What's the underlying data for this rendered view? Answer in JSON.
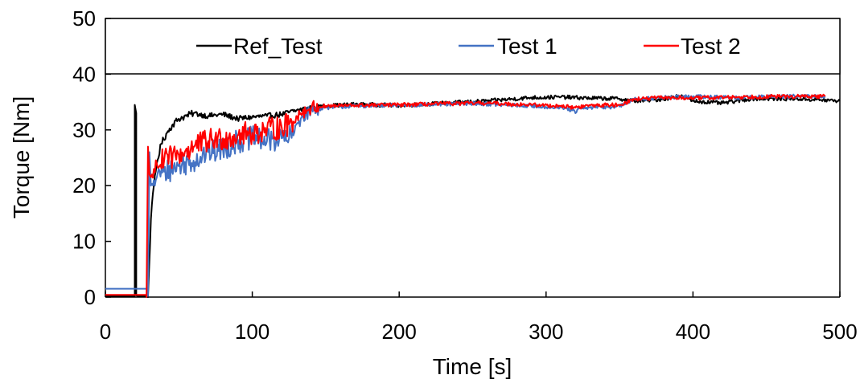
{
  "chart_data": {
    "type": "line",
    "title": "",
    "xlabel": "Time [s]",
    "ylabel": "Torque [Nm]",
    "xlim": [
      0,
      500
    ],
    "ylim": [
      0,
      50
    ],
    "xticks": [
      "0",
      "100",
      "200",
      "300",
      "400",
      "500"
    ],
    "yticks": [
      "0",
      "10",
      "20",
      "30",
      "40",
      "50"
    ],
    "grid": false,
    "legend_position": "top",
    "series": [
      {
        "name": "Ref_Test",
        "color": "#000000",
        "x": [
          0,
          19,
          20,
          20,
          21,
          21,
          22,
          28,
          29,
          31,
          33,
          35,
          38,
          42,
          46,
          50,
          55,
          60,
          70,
          80,
          90,
          100,
          110,
          120,
          130,
          140,
          150,
          170,
          200,
          230,
          260,
          290,
          310,
          330,
          350,
          360,
          380,
          390,
          400,
          420,
          440,
          470,
          500
        ],
        "y": [
          0.2,
          0.2,
          0.2,
          34.5,
          33,
          0.3,
          0.2,
          0.2,
          0,
          14,
          20,
          24,
          27.5,
          29.5,
          31,
          32,
          32.5,
          33,
          32.5,
          32.8,
          32,
          32.3,
          32.5,
          32.8,
          33.5,
          34,
          34.3,
          34.6,
          34.4,
          34.8,
          35.2,
          35.8,
          35.9,
          35.7,
          35.6,
          35.2,
          35.5,
          36.2,
          35.2,
          34.8,
          35.6,
          35.6,
          35.2
        ]
      },
      {
        "name": "Test 1",
        "color": "#4472c4",
        "x": [
          0,
          29,
          29,
          30,
          31,
          33,
          35,
          40,
          50,
          60,
          70,
          80,
          90,
          100,
          110,
          120,
          125,
          128,
          130,
          133,
          137,
          140,
          150,
          170,
          200,
          230,
          250,
          270,
          290,
          310,
          318,
          320,
          322,
          330,
          350,
          360,
          380,
          400,
          430,
          460,
          490
        ],
        "y": [
          1.5,
          1.5,
          0.2,
          26,
          20,
          21,
          21.5,
          22.5,
          23.5,
          24.5,
          26,
          26.5,
          28,
          28.5,
          28,
          28.5,
          28.5,
          29,
          31,
          32,
          33,
          33.5,
          34,
          34.3,
          34.4,
          34.6,
          34.8,
          34.5,
          34.3,
          34,
          33.5,
          33,
          33.8,
          34,
          34.2,
          35.5,
          35.8,
          36,
          35.8,
          36,
          36
        ]
      },
      {
        "name": "Test 2",
        "color": "#ff0000",
        "x": [
          0,
          28,
          28,
          29,
          30,
          31,
          33,
          35,
          40,
          50,
          60,
          70,
          80,
          90,
          100,
          110,
          120,
          125,
          128,
          130,
          133,
          137,
          140,
          150,
          170,
          200,
          230,
          260,
          290,
          310,
          320,
          330,
          350,
          360,
          380,
          400,
          430,
          460,
          490
        ],
        "y": [
          0.4,
          0.4,
          0,
          27,
          22,
          21.5,
          23,
          24,
          24.5,
          25.5,
          27,
          28,
          28.5,
          29,
          29.5,
          30,
          30.5,
          31,
          31.5,
          32.5,
          33,
          33.5,
          34,
          34.3,
          34.4,
          34.5,
          34.7,
          34.8,
          34.5,
          34.3,
          34,
          34.4,
          34.5,
          35.5,
          35.8,
          35.7,
          35.9,
          36,
          36
        ]
      }
    ]
  }
}
